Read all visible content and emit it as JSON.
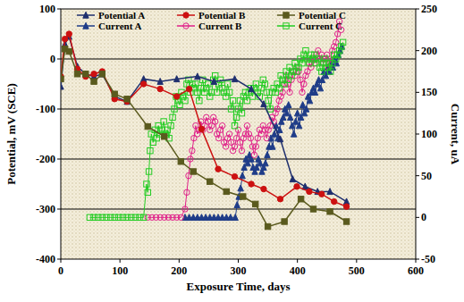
{
  "chart_data": {
    "type": "line",
    "x_label": "Exposure Time, days",
    "y_label": "Potential, mV (SCE)",
    "y2_label": "Current, uA",
    "xlim": [
      0,
      600
    ],
    "xticks": [
      0,
      100,
      200,
      300,
      400,
      500,
      600
    ],
    "ylim": [
      -400,
      100
    ],
    "yticks": [
      -400,
      -300,
      -200,
      -100,
      0,
      100
    ],
    "y2lim": [
      -50,
      250
    ],
    "y2ticks": [
      -50,
      0,
      50,
      100,
      150,
      200,
      250
    ],
    "grid": true,
    "legend": "top-left",
    "series": [
      {
        "name": "Potential A",
        "color": "#1f2f6e",
        "marker": "triangle",
        "line_style": "solid",
        "x": [
          0,
          7,
          14,
          28,
          42,
          56,
          70,
          91,
          112,
          140,
          168,
          196,
          231,
          259,
          294,
          322,
          343,
          371,
          392,
          413,
          434,
          455,
          483
        ],
        "values": [
          -55,
          30,
          45,
          -15,
          -30,
          -35,
          -30,
          -75,
          -85,
          -40,
          -45,
          -40,
          -35,
          -45,
          -40,
          -60,
          -90,
          -160,
          -240,
          -255,
          -265,
          -265,
          -285
        ]
      },
      {
        "name": "Potential B",
        "color": "#cc1111",
        "marker": "circle",
        "line_style": "solid",
        "x": [
          0,
          7,
          14,
          28,
          42,
          56,
          70,
          91,
          112,
          140,
          168,
          196,
          217,
          238,
          266,
          294,
          322,
          343,
          371,
          399,
          420,
          441,
          462,
          483
        ],
        "values": [
          -35,
          40,
          50,
          -20,
          -35,
          -30,
          -25,
          -80,
          -85,
          -50,
          -60,
          -75,
          -60,
          -140,
          -220,
          -235,
          -250,
          -260,
          -280,
          -255,
          -265,
          -270,
          -285,
          -295
        ]
      },
      {
        "name": "Potential C",
        "color": "#5a5a1e",
        "marker": "square",
        "line_style": "solid",
        "x": [
          0,
          7,
          14,
          28,
          42,
          56,
          70,
          91,
          112,
          147,
          175,
          203,
          224,
          252,
          280,
          308,
          329,
          350,
          378,
          406,
          427,
          455,
          483
        ],
        "values": [
          -40,
          20,
          15,
          -30,
          -30,
          -45,
          -30,
          -70,
          -80,
          -135,
          -155,
          -205,
          -225,
          -245,
          -265,
          -275,
          -290,
          -335,
          -325,
          -280,
          -300,
          -305,
          -325
        ]
      },
      {
        "name": "Current A",
        "color": "#1f3c88",
        "marker": "triangle",
        "line_style": "solid",
        "axis": "y2",
        "x": [
          210,
          217,
          224,
          231,
          238,
          245,
          252,
          259,
          266,
          273,
          280,
          287,
          295,
          298,
          301,
          304,
          307,
          310,
          313,
          316,
          319,
          322,
          325,
          328,
          331,
          334,
          337,
          340,
          343,
          346,
          349,
          352,
          355,
          358,
          361,
          364,
          367,
          370,
          373,
          376,
          379,
          382,
          385,
          388,
          391,
          394,
          397,
          400,
          403,
          406,
          409,
          412,
          415,
          418,
          421,
          424,
          427,
          430,
          433,
          436,
          439,
          442,
          445,
          448,
          451,
          454,
          457,
          460,
          463,
          466,
          469,
          472,
          475
        ],
        "values": [
          0,
          0,
          0,
          0,
          0,
          0,
          0,
          0,
          0,
          0,
          0,
          0,
          0,
          15,
          25,
          35,
          50,
          60,
          70,
          65,
          75,
          70,
          60,
          55,
          60,
          70,
          65,
          55,
          60,
          65,
          75,
          85,
          95,
          85,
          100,
          110,
          95,
          105,
          115,
          120,
          130,
          125,
          135,
          120,
          110,
          100,
          115,
          125,
          110,
          120,
          135,
          125,
          130,
          145,
          140,
          150,
          155,
          150,
          160,
          165,
          155,
          165,
          175,
          170,
          180,
          175,
          185,
          180,
          190,
          185,
          195,
          200,
          205
        ]
      },
      {
        "name": "Current B",
        "color": "#e0208a",
        "marker": "circle-open",
        "line_style": "solid",
        "axis": "y2",
        "x": [
          147,
          154,
          161,
          168,
          175,
          182,
          189,
          196,
          203,
          210,
          213,
          216,
          219,
          222,
          225,
          228,
          231,
          234,
          237,
          240,
          243,
          246,
          249,
          252,
          255,
          258,
          261,
          264,
          267,
          270,
          273,
          276,
          279,
          282,
          285,
          288,
          291,
          294,
          297,
          300,
          303,
          306,
          309,
          312,
          315,
          318,
          321,
          324,
          327,
          330,
          333,
          336,
          339,
          342,
          345,
          348,
          351,
          354,
          357,
          360,
          363,
          366,
          369,
          372,
          375,
          378,
          381,
          384,
          387,
          390,
          393,
          396,
          399,
          402,
          405,
          408,
          411,
          414,
          417,
          420,
          423,
          426,
          429,
          432,
          435,
          438,
          441,
          444,
          447,
          450,
          453,
          456,
          459,
          462,
          465,
          468,
          471,
          474
        ],
        "values": [
          0,
          0,
          0,
          0,
          0,
          0,
          0,
          0,
          0,
          10,
          30,
          50,
          70,
          80,
          95,
          110,
          100,
          105,
          115,
          105,
          110,
          120,
          115,
          105,
          110,
          120,
          115,
          100,
          95,
          105,
          110,
          90,
          85,
          95,
          100,
          90,
          80,
          85,
          95,
          105,
          90,
          80,
          95,
          100,
          110,
          100,
          95,
          85,
          75,
          85,
          95,
          105,
          100,
          110,
          105,
          95,
          105,
          110,
          120,
          115,
          125,
          130,
          140,
          145,
          150,
          160,
          170,
          160,
          150,
          165,
          175,
          170,
          180,
          175,
          165,
          150,
          160,
          170,
          175,
          185,
          180,
          190,
          185,
          195,
          200,
          190,
          195,
          185,
          190,
          195,
          180,
          190,
          200,
          205,
          210,
          220,
          235,
          225
        ]
      },
      {
        "name": "Current C",
        "color": "#22cc22",
        "marker": "square-open",
        "line_style": "solid",
        "axis": "y2",
        "x": [
          49,
          56,
          63,
          70,
          77,
          84,
          91,
          98,
          105,
          112,
          119,
          126,
          133,
          140,
          145,
          147,
          149,
          151,
          153,
          156,
          159,
          162,
          165,
          168,
          171,
          174,
          177,
          180,
          183,
          186,
          189,
          192,
          195,
          198,
          201,
          204,
          207,
          210,
          213,
          216,
          219,
          222,
          225,
          228,
          231,
          234,
          237,
          240,
          243,
          246,
          249,
          252,
          255,
          258,
          261,
          264,
          267,
          270,
          273,
          276,
          279,
          282,
          285,
          288,
          291,
          294,
          297,
          300,
          303,
          306,
          309,
          312,
          315,
          318,
          321,
          324,
          327,
          330,
          333,
          336,
          339,
          342,
          345,
          348,
          351,
          354,
          357,
          360,
          363,
          366,
          369,
          372,
          375,
          378,
          381,
          384,
          387,
          390,
          393,
          396,
          399,
          402,
          405,
          408,
          411,
          414,
          417,
          420,
          423,
          426,
          429,
          432,
          435,
          438,
          441,
          444,
          447,
          450,
          453,
          456,
          459,
          462,
          465,
          468,
          471,
          474,
          477
        ],
        "values": [
          0,
          0,
          0,
          0,
          0,
          0,
          0,
          0,
          0,
          0,
          0,
          0,
          0,
          0,
          40,
          30,
          55,
          80,
          100,
          90,
          105,
          95,
          110,
          100,
          105,
          115,
          100,
          105,
          95,
          110,
          120,
          130,
          145,
          140,
          135,
          150,
          145,
          140,
          160,
          165,
          150,
          160,
          155,
          160,
          150,
          140,
          155,
          165,
          150,
          155,
          160,
          145,
          150,
          165,
          170,
          150,
          160,
          165,
          155,
          150,
          145,
          160,
          150,
          130,
          140,
          110,
          120,
          130,
          140,
          125,
          145,
          150,
          140,
          150,
          155,
          145,
          155,
          160,
          150,
          145,
          155,
          165,
          160,
          150,
          140,
          130,
          150,
          155,
          150,
          160,
          155,
          170,
          165,
          160,
          175,
          165,
          180,
          170,
          175,
          185,
          175,
          180,
          190,
          185,
          195,
          200,
          190,
          185,
          195,
          190,
          195,
          185,
          190,
          180,
          175,
          185,
          190,
          180,
          185,
          175,
          185,
          195,
          190,
          195,
          200,
          205,
          210
        ]
      }
    ]
  }
}
